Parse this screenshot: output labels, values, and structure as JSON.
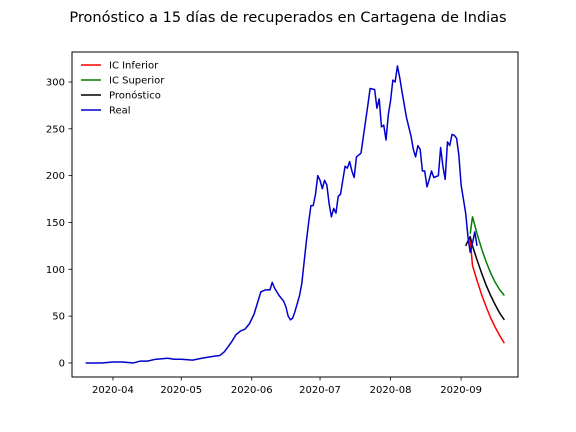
{
  "chart_data": {
    "type": "line",
    "title": "Pronóstico a 15 días de recuperados en Cartagena de Indias",
    "xlabel": "",
    "ylabel": "",
    "x_axis_type": "date",
    "xlim": [
      "2020-03-14",
      "2020-09-26"
    ],
    "ylim": [
      -15,
      332
    ],
    "x_ticks": [
      "2020-04-01",
      "2020-05-01",
      "2020-06-01",
      "2020-07-01",
      "2020-08-01",
      "2020-09-01"
    ],
    "x_tick_labels": [
      "2020-04",
      "2020-05",
      "2020-06",
      "2020-07",
      "2020-08",
      "2020-09"
    ],
    "y_ticks": [
      0,
      50,
      100,
      150,
      200,
      250,
      300
    ],
    "y_tick_labels": [
      "0",
      "50",
      "100",
      "150",
      "200",
      "250",
      "300"
    ],
    "grid": false,
    "legend_position": "top-left",
    "series": [
      {
        "name": "IC Inferior",
        "color": "#ff0000",
        "points": [
          [
            "2020-09-05",
            132
          ],
          [
            "2020-09-06",
            104
          ],
          [
            "2020-09-08",
            88
          ],
          [
            "2020-09-10",
            73
          ],
          [
            "2020-09-12",
            60
          ],
          [
            "2020-09-14",
            48
          ],
          [
            "2020-09-16",
            38
          ],
          [
            "2020-09-18",
            29
          ],
          [
            "2020-09-20",
            21
          ]
        ]
      },
      {
        "name": "IC Superior",
        "color": "#008000",
        "points": [
          [
            "2020-09-05",
            138
          ],
          [
            "2020-09-06",
            156
          ],
          [
            "2020-09-08",
            138
          ],
          [
            "2020-09-10",
            122
          ],
          [
            "2020-09-12",
            108
          ],
          [
            "2020-09-14",
            96
          ],
          [
            "2020-09-16",
            86
          ],
          [
            "2020-09-18",
            78
          ],
          [
            "2020-09-20",
            72
          ]
        ]
      },
      {
        "name": "Pronóstico",
        "color": "#000000",
        "points": [
          [
            "2020-09-03",
            125
          ],
          [
            "2020-09-05",
            135
          ],
          [
            "2020-09-06",
            125
          ],
          [
            "2020-09-08",
            110
          ],
          [
            "2020-09-10",
            96
          ],
          [
            "2020-09-12",
            83
          ],
          [
            "2020-09-14",
            72
          ],
          [
            "2020-09-16",
            62
          ],
          [
            "2020-09-18",
            53
          ],
          [
            "2020-09-20",
            46
          ]
        ]
      },
      {
        "name": "Real",
        "color": "#0000cc",
        "points": [
          [
            "2020-03-20",
            0
          ],
          [
            "2020-03-27",
            0
          ],
          [
            "2020-04-01",
            1
          ],
          [
            "2020-04-05",
            1
          ],
          [
            "2020-04-10",
            0
          ],
          [
            "2020-04-13",
            2
          ],
          [
            "2020-04-16",
            2
          ],
          [
            "2020-04-20",
            4
          ],
          [
            "2020-04-25",
            5
          ],
          [
            "2020-04-28",
            4
          ],
          [
            "2020-05-01",
            4
          ],
          [
            "2020-05-06",
            3
          ],
          [
            "2020-05-10",
            5
          ],
          [
            "2020-05-15",
            7
          ],
          [
            "2020-05-18",
            8
          ],
          [
            "2020-05-20",
            12
          ],
          [
            "2020-05-23",
            22
          ],
          [
            "2020-05-25",
            30
          ],
          [
            "2020-05-27",
            34
          ],
          [
            "2020-05-29",
            36
          ],
          [
            "2020-05-31",
            42
          ],
          [
            "2020-06-02",
            52
          ],
          [
            "2020-06-04",
            68
          ],
          [
            "2020-06-05",
            76
          ],
          [
            "2020-06-07",
            78
          ],
          [
            "2020-06-09",
            78
          ],
          [
            "2020-06-10",
            86
          ],
          [
            "2020-06-11",
            80
          ],
          [
            "2020-06-13",
            72
          ],
          [
            "2020-06-15",
            66
          ],
          [
            "2020-06-16",
            60
          ],
          [
            "2020-06-17",
            50
          ],
          [
            "2020-06-18",
            46
          ],
          [
            "2020-06-19",
            48
          ],
          [
            "2020-06-20",
            55
          ],
          [
            "2020-06-22",
            72
          ],
          [
            "2020-06-23",
            85
          ],
          [
            "2020-06-25",
            130
          ],
          [
            "2020-06-26",
            150
          ],
          [
            "2020-06-27",
            168
          ],
          [
            "2020-06-28",
            168
          ],
          [
            "2020-06-29",
            180
          ],
          [
            "2020-06-30",
            200
          ],
          [
            "2020-07-01",
            195
          ],
          [
            "2020-07-02",
            186
          ],
          [
            "2020-07-03",
            195
          ],
          [
            "2020-07-04",
            190
          ],
          [
            "2020-07-05",
            170
          ],
          [
            "2020-07-06",
            156
          ],
          [
            "2020-07-07",
            165
          ],
          [
            "2020-07-08",
            160
          ],
          [
            "2020-07-09",
            178
          ],
          [
            "2020-07-10",
            180
          ],
          [
            "2020-07-11",
            195
          ],
          [
            "2020-07-12",
            210
          ],
          [
            "2020-07-13",
            208
          ],
          [
            "2020-07-14",
            215
          ],
          [
            "2020-07-15",
            205
          ],
          [
            "2020-07-16",
            198
          ],
          [
            "2020-07-17",
            220
          ],
          [
            "2020-07-19",
            224
          ],
          [
            "2020-07-21",
            258
          ],
          [
            "2020-07-22",
            275
          ],
          [
            "2020-07-23",
            293
          ],
          [
            "2020-07-25",
            292
          ],
          [
            "2020-07-26",
            272
          ],
          [
            "2020-07-27",
            282
          ],
          [
            "2020-07-28",
            252
          ],
          [
            "2020-07-29",
            254
          ],
          [
            "2020-07-30",
            238
          ],
          [
            "2020-07-31",
            265
          ],
          [
            "2020-08-01",
            280
          ],
          [
            "2020-08-02",
            302
          ],
          [
            "2020-08-03",
            300
          ],
          [
            "2020-08-04",
            317
          ],
          [
            "2020-08-05",
            305
          ],
          [
            "2020-08-06",
            290
          ],
          [
            "2020-08-08",
            262
          ],
          [
            "2020-08-10",
            242
          ],
          [
            "2020-08-11",
            228
          ],
          [
            "2020-08-12",
            220
          ],
          [
            "2020-08-13",
            232
          ],
          [
            "2020-08-14",
            228
          ],
          [
            "2020-08-15",
            205
          ],
          [
            "2020-08-16",
            205
          ],
          [
            "2020-08-17",
            188
          ],
          [
            "2020-08-18",
            196
          ],
          [
            "2020-08-19",
            205
          ],
          [
            "2020-08-20",
            198
          ],
          [
            "2020-08-22",
            200
          ],
          [
            "2020-08-23",
            230
          ],
          [
            "2020-08-24",
            210
          ],
          [
            "2020-08-25",
            196
          ],
          [
            "2020-08-26",
            236
          ],
          [
            "2020-08-27",
            232
          ],
          [
            "2020-08-28",
            244
          ],
          [
            "2020-08-29",
            243
          ],
          [
            "2020-08-30",
            240
          ],
          [
            "2020-08-31",
            222
          ],
          [
            "2020-09-01",
            190
          ],
          [
            "2020-09-02",
            175
          ],
          [
            "2020-09-03",
            160
          ],
          [
            "2020-09-04",
            135
          ],
          [
            "2020-09-05",
            118
          ],
          [
            "2020-09-06",
            128
          ],
          [
            "2020-09-07",
            140
          ],
          [
            "2020-09-08",
            125
          ]
        ]
      }
    ]
  }
}
